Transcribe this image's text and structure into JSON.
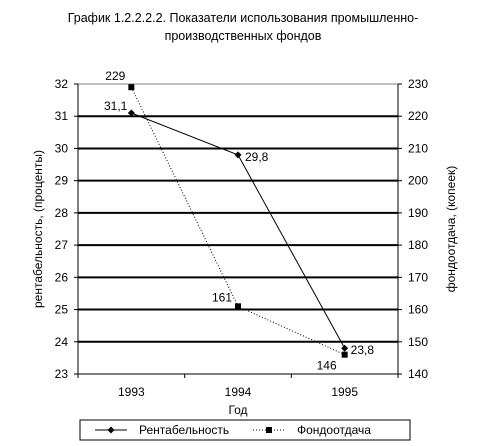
{
  "chart_data": {
    "type": "line",
    "title_lines": [
      "График 1.2.2.2.2.  Показатели использования промышленно-",
      "производственных фондов"
    ],
    "xlabel": "Год",
    "ylabel_left": "рентабельность, (проценты)",
    "ylabel_right": "фондоотдача, (копеек)",
    "categories": [
      "1993",
      "1994",
      "1995"
    ],
    "y_left": {
      "min": 23,
      "max": 32,
      "step": 1,
      "ticks": [
        "23",
        "24",
        "25",
        "26",
        "27",
        "28",
        "29",
        "30",
        "31",
        "32"
      ]
    },
    "y_right": {
      "min": 140,
      "max": 230,
      "step": 10,
      "ticks": [
        "140",
        "150",
        "160",
        "170",
        "180",
        "190",
        "200",
        "210",
        "220",
        "230"
      ]
    },
    "grid": "horizontal",
    "legend_position": "bottom",
    "series": [
      {
        "name": "Рентабельность",
        "axis": "left",
        "values": [
          31.1,
          29.8,
          23.8
        ],
        "labels": [
          "31,1",
          "29,8",
          "23,8"
        ],
        "marker": "diamond",
        "line_style": "solid",
        "color": "#000000"
      },
      {
        "name": "Фондоотдача",
        "axis": "right",
        "values": [
          229,
          161,
          146
        ],
        "labels": [
          "229",
          "161",
          "146"
        ],
        "marker": "square",
        "line_style": "dotted",
        "color": "#000000"
      }
    ]
  }
}
